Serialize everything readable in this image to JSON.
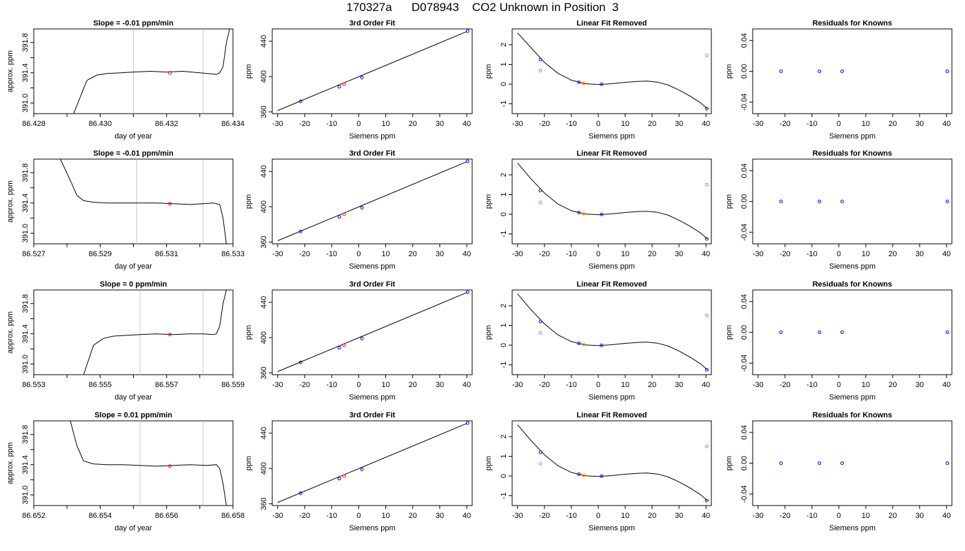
{
  "page": {
    "title": "170327a      D078943    CO2 Unknown in Position  3"
  },
  "colors": {
    "trace": "#000000",
    "known": "#0000ff",
    "unknown": "#ff0000",
    "knownAlt": "#cc66ff",
    "unknownFit": "#ff8800",
    "marker": "#c8c8c8"
  },
  "chart_data": [
    {
      "type": "line",
      "title": "Slope =  -0.01  ppm/min",
      "xlabel": "day of year",
      "ylabel": "approx. ppm",
      "xticks": [
        "86.428",
        "86.430",
        "86.432",
        "86.434"
      ],
      "yticks": [
        "391.0",
        "391.4",
        "391.8"
      ],
      "xlim": [
        86.428,
        86.434
      ],
      "ylim": [
        390.86,
        391.98
      ],
      "markers": [
        86.431,
        86.4331
      ],
      "point": [
        86.4321,
        391.4
      ],
      "x": [
        86.4292,
        86.4296,
        86.4299,
        86.4302,
        86.4306,
        86.431,
        86.4315,
        86.432,
        86.4325,
        86.433,
        86.4335,
        86.4336,
        86.4337,
        86.4338,
        86.4339
      ],
      "y": [
        390.86,
        391.3,
        391.37,
        391.39,
        391.4,
        391.41,
        391.42,
        391.41,
        391.42,
        391.4,
        391.38,
        391.4,
        391.48,
        391.8,
        391.98
      ]
    },
    {
      "type": "scatter",
      "title": "3rd Order Fit",
      "xlabel": "Siemens ppm",
      "ylabel": "ppm",
      "xticks": [
        "-30",
        "-20",
        "-10",
        "0",
        "10",
        "20",
        "30",
        "40"
      ],
      "yticks": [
        "360",
        "400",
        "440"
      ],
      "xlim": [
        -32,
        42
      ],
      "ylim": [
        358,
        454
      ],
      "fit_x": [
        -30,
        40
      ],
      "fit_y": [
        361.5,
        451
      ],
      "known": [
        [
          -21.5,
          372
        ],
        [
          -7.2,
          388.5
        ],
        [
          1.2,
          399
        ],
        [
          40.3,
          451.5
        ]
      ],
      "unknown": [
        [
          -5.4,
          391.5
        ]
      ]
    },
    {
      "type": "scatter",
      "title": "Linear Fit Removed",
      "xlabel": "Siemens ppm",
      "ylabel": "ppm",
      "xticks": [
        "-30",
        "-20",
        "-10",
        "0",
        "10",
        "20",
        "30",
        "40"
      ],
      "yticks": [
        "-1",
        "0",
        "1",
        "2"
      ],
      "xlim": [
        -32,
        42
      ],
      "ylim": [
        -1.5,
        2.8
      ],
      "curve": [
        [
          -30,
          2.6
        ],
        [
          -25,
          1.85
        ],
        [
          -20,
          1.1
        ],
        [
          -15,
          0.55
        ],
        [
          -10,
          0.2
        ],
        [
          -5,
          0.02
        ],
        [
          0,
          -0.02
        ],
        [
          5,
          0.02
        ],
        [
          10,
          0.09
        ],
        [
          15,
          0.14
        ],
        [
          18,
          0.15
        ],
        [
          22,
          0.1
        ],
        [
          26,
          -0.05
        ],
        [
          30,
          -0.3
        ],
        [
          34,
          -0.6
        ],
        [
          38,
          -0.95
        ],
        [
          40.5,
          -1.25
        ]
      ],
      "known": [
        [
          -21.5,
          1.25
        ],
        [
          -7.2,
          0.09
        ],
        [
          1.2,
          -0.01
        ],
        [
          40.3,
          -1.25
        ]
      ],
      "knownAlt": [
        [
          -21.5,
          0.68
        ],
        [
          40.3,
          1.45
        ]
      ],
      "unknown": [
        [
          -5.4,
          0.04
        ]
      ]
    },
    {
      "type": "scatter",
      "title": "Residuals for Knowns",
      "xlabel": "Siemens ppm",
      "ylabel": "ppm",
      "xticks": [
        "-30",
        "-20",
        "-10",
        "0",
        "10",
        "20",
        "30",
        "40"
      ],
      "yticks": [
        "-0.04",
        "0.00",
        "0.04"
      ],
      "xlim": [
        -32,
        42
      ],
      "ylim": [
        -0.055,
        0.055
      ],
      "known": [
        [
          -21.5,
          0
        ],
        [
          -7.2,
          0
        ],
        [
          1.2,
          0
        ],
        [
          40.3,
          0
        ]
      ]
    },
    {
      "type": "line",
      "title": "Slope =  -0.01  ppm/min",
      "xlabel": "day of year",
      "ylabel": "approx. ppm",
      "xticks": [
        "86.527",
        "86.529",
        "86.531",
        "86.533"
      ],
      "yticks": [
        "391.0",
        "391.4",
        "391.8"
      ],
      "xlim": [
        86.527,
        86.533
      ],
      "ylim": [
        390.86,
        391.98
      ],
      "markers": [
        86.5301,
        86.5321
      ],
      "point": [
        86.5311,
        391.39
      ],
      "x": [
        86.5278,
        86.5281,
        86.5283,
        86.5285,
        86.5288,
        86.5292,
        86.5297,
        86.5302,
        86.5307,
        86.5312,
        86.5317,
        86.5321,
        86.5324,
        86.5326,
        86.5327,
        86.5328
      ],
      "y": [
        391.98,
        391.7,
        391.5,
        391.43,
        391.41,
        391.4,
        391.4,
        391.4,
        391.4,
        391.39,
        391.38,
        391.39,
        391.4,
        391.38,
        391.2,
        390.86
      ]
    },
    {
      "type": "scatter",
      "title": "3rd Order Fit",
      "xlabel": "Siemens ppm",
      "ylabel": "ppm",
      "xticks": [
        "-30",
        "-20",
        "-10",
        "0",
        "10",
        "20",
        "30",
        "40"
      ],
      "yticks": [
        "360",
        "400",
        "440"
      ],
      "xlim": [
        -32,
        42
      ],
      "ylim": [
        358,
        454
      ],
      "fit_x": [
        -30,
        40
      ],
      "fit_y": [
        361.5,
        451
      ],
      "known": [
        [
          -21.5,
          372
        ],
        [
          -7.2,
          388.5
        ],
        [
          1.2,
          399
        ],
        [
          40.3,
          451.5
        ]
      ],
      "unknown": [
        [
          -5.4,
          391.5
        ]
      ]
    },
    {
      "type": "scatter",
      "title": "Linear Fit Removed",
      "xlabel": "Siemens ppm",
      "ylabel": "ppm",
      "xticks": [
        "-30",
        "-20",
        "-10",
        "0",
        "10",
        "20",
        "30",
        "40"
      ],
      "yticks": [
        "-1",
        "0",
        "1",
        "2"
      ],
      "xlim": [
        -32,
        42
      ],
      "ylim": [
        -1.5,
        2.8
      ],
      "curve": [
        [
          -30,
          2.6
        ],
        [
          -25,
          1.8
        ],
        [
          -20,
          1.08
        ],
        [
          -15,
          0.52
        ],
        [
          -10,
          0.18
        ],
        [
          -5,
          0.01
        ],
        [
          0,
          -0.02
        ],
        [
          5,
          0.02
        ],
        [
          10,
          0.09
        ],
        [
          15,
          0.14
        ],
        [
          18,
          0.15
        ],
        [
          22,
          0.1
        ],
        [
          26,
          -0.05
        ],
        [
          30,
          -0.3
        ],
        [
          34,
          -0.6
        ],
        [
          38,
          -0.95
        ],
        [
          40.5,
          -1.25
        ]
      ],
      "known": [
        [
          -21.5,
          1.2
        ],
        [
          -7.2,
          0.09
        ],
        [
          1.2,
          -0.01
        ],
        [
          40.3,
          -1.25
        ]
      ],
      "knownAlt": [
        [
          -21.5,
          0.6
        ],
        [
          40.3,
          1.5
        ]
      ],
      "unknown": [
        [
          -5.4,
          0.03
        ]
      ]
    },
    {
      "type": "scatter",
      "title": "Residuals for Knowns",
      "xlabel": "Siemens ppm",
      "ylabel": "ppm",
      "xticks": [
        "-30",
        "-20",
        "-10",
        "0",
        "10",
        "20",
        "30",
        "40"
      ],
      "yticks": [
        "-0.04",
        "0.00",
        "0.04"
      ],
      "xlim": [
        -32,
        42
      ],
      "ylim": [
        -0.055,
        0.055
      ],
      "known": [
        [
          -21.5,
          0
        ],
        [
          -7.2,
          0
        ],
        [
          1.2,
          0
        ],
        [
          40.3,
          0
        ]
      ]
    },
    {
      "type": "line",
      "title": "Slope =  0  ppm/min",
      "xlabel": "day of year",
      "ylabel": "approx. ppm",
      "xticks": [
        "86.553",
        "86.555",
        "86.557",
        "86.559"
      ],
      "yticks": [
        "391.0",
        "391.4",
        "391.8"
      ],
      "xlim": [
        86.553,
        86.559
      ],
      "ylim": [
        390.86,
        391.98
      ],
      "markers": [
        86.5562,
        86.5581
      ],
      "point": [
        86.5571,
        391.39
      ],
      "x": [
        86.5545,
        86.5548,
        86.5551,
        86.5554,
        86.5558,
        86.5562,
        86.5567,
        86.5572,
        86.5577,
        86.5581,
        86.5584,
        86.5585,
        86.5586,
        86.5587,
        86.5588
      ],
      "y": [
        390.86,
        391.25,
        391.34,
        391.37,
        391.38,
        391.39,
        391.4,
        391.39,
        391.4,
        391.4,
        391.39,
        391.4,
        391.5,
        391.8,
        391.98
      ]
    },
    {
      "type": "scatter",
      "title": "3rd Order Fit",
      "xlabel": "Siemens ppm",
      "ylabel": "ppm",
      "xticks": [
        "-30",
        "-20",
        "-10",
        "0",
        "10",
        "20",
        "30",
        "40"
      ],
      "yticks": [
        "360",
        "400",
        "440"
      ],
      "xlim": [
        -32,
        42
      ],
      "ylim": [
        358,
        454
      ],
      "fit_x": [
        -30,
        40
      ],
      "fit_y": [
        361.5,
        451
      ],
      "known": [
        [
          -21.5,
          372
        ],
        [
          -7.2,
          388.5
        ],
        [
          1.2,
          399
        ],
        [
          40.3,
          451.5
        ]
      ],
      "unknown": [
        [
          -5.4,
          391.5
        ]
      ]
    },
    {
      "type": "scatter",
      "title": "Linear Fit Removed",
      "xlabel": "Siemens ppm",
      "ylabel": "ppm",
      "xticks": [
        "-30",
        "-20",
        "-10",
        "0",
        "10",
        "20",
        "30",
        "40"
      ],
      "yticks": [
        "-1",
        "0",
        "1",
        "2"
      ],
      "xlim": [
        -32,
        42
      ],
      "ylim": [
        -1.5,
        2.8
      ],
      "curve": [
        [
          -30,
          2.6
        ],
        [
          -25,
          1.8
        ],
        [
          -20,
          1.08
        ],
        [
          -15,
          0.52
        ],
        [
          -10,
          0.18
        ],
        [
          -5,
          0.01
        ],
        [
          0,
          -0.02
        ],
        [
          5,
          0.02
        ],
        [
          10,
          0.09
        ],
        [
          15,
          0.14
        ],
        [
          18,
          0.15
        ],
        [
          22,
          0.1
        ],
        [
          26,
          -0.05
        ],
        [
          30,
          -0.3
        ],
        [
          34,
          -0.6
        ],
        [
          38,
          -0.95
        ],
        [
          40.5,
          -1.25
        ]
      ],
      "known": [
        [
          -21.5,
          1.2
        ],
        [
          -7.2,
          0.09
        ],
        [
          1.2,
          -0.01
        ],
        [
          40.3,
          -1.25
        ]
      ],
      "knownAlt": [
        [
          -21.5,
          0.62
        ],
        [
          40.3,
          1.5
        ]
      ],
      "unknown": [
        [
          -5.4,
          0.04
        ]
      ]
    },
    {
      "type": "scatter",
      "title": "Residuals for Knowns",
      "xlabel": "Siemens ppm",
      "ylabel": "ppm",
      "xticks": [
        "-30",
        "-20",
        "-10",
        "0",
        "10",
        "20",
        "30",
        "40"
      ],
      "yticks": [
        "-0.04",
        "0.00",
        "0.04"
      ],
      "xlim": [
        -32,
        42
      ],
      "ylim": [
        -0.055,
        0.055
      ],
      "known": [
        [
          -21.5,
          0
        ],
        [
          -7.2,
          0
        ],
        [
          1.2,
          0
        ],
        [
          40.3,
          0
        ]
      ]
    },
    {
      "type": "line",
      "title": "Slope =  0.01  ppm/min",
      "xlabel": "day of year",
      "ylabel": "approx. ppm",
      "xticks": [
        "86.652",
        "86.654",
        "86.656",
        "86.658"
      ],
      "yticks": [
        "391.0",
        "391.4",
        "391.8"
      ],
      "xlim": [
        86.652,
        86.658
      ],
      "ylim": [
        390.86,
        391.98
      ],
      "markers": [
        86.6552,
        86.6571
      ],
      "point": [
        86.6561,
        391.38
      ],
      "x": [
        86.6531,
        86.6533,
        86.6535,
        86.6538,
        86.6542,
        86.6547,
        86.6552,
        86.6557,
        86.6562,
        86.6567,
        86.6572,
        86.6575,
        86.6576,
        86.6577,
        86.6578
      ],
      "y": [
        391.98,
        391.65,
        391.45,
        391.41,
        391.4,
        391.4,
        391.39,
        391.38,
        391.39,
        391.4,
        391.39,
        391.4,
        391.35,
        391.15,
        390.86
      ]
    },
    {
      "type": "scatter",
      "title": "3rd Order Fit",
      "xlabel": "Siemens ppm",
      "ylabel": "ppm",
      "xticks": [
        "-30",
        "-20",
        "-10",
        "0",
        "10",
        "20",
        "30",
        "40"
      ],
      "yticks": [
        "360",
        "400",
        "440"
      ],
      "xlim": [
        -32,
        42
      ],
      "ylim": [
        358,
        454
      ],
      "fit_x": [
        -30,
        40
      ],
      "fit_y": [
        361.5,
        451
      ],
      "known": [
        [
          -21.5,
          372
        ],
        [
          -7.2,
          388.5
        ],
        [
          1.2,
          399
        ],
        [
          40.3,
          451.5
        ]
      ],
      "unknown": [
        [
          -5.4,
          391.5
        ]
      ]
    },
    {
      "type": "scatter",
      "title": "Linear Fit Removed",
      "xlabel": "Siemens ppm",
      "ylabel": "ppm",
      "xticks": [
        "-30",
        "-20",
        "-10",
        "0",
        "10",
        "20",
        "30",
        "40"
      ],
      "yticks": [
        "-1",
        "0",
        "1",
        "2"
      ],
      "xlim": [
        -32,
        42
      ],
      "ylim": [
        -1.5,
        2.8
      ],
      "curve": [
        [
          -30,
          2.6
        ],
        [
          -25,
          1.8
        ],
        [
          -20,
          1.08
        ],
        [
          -15,
          0.52
        ],
        [
          -10,
          0.18
        ],
        [
          -5,
          0.01
        ],
        [
          0,
          -0.02
        ],
        [
          5,
          0.02
        ],
        [
          10,
          0.09
        ],
        [
          15,
          0.14
        ],
        [
          18,
          0.15
        ],
        [
          22,
          0.1
        ],
        [
          26,
          -0.05
        ],
        [
          30,
          -0.3
        ],
        [
          34,
          -0.6
        ],
        [
          38,
          -0.95
        ],
        [
          40.5,
          -1.25
        ]
      ],
      "known": [
        [
          -21.5,
          1.2
        ],
        [
          -7.2,
          0.09
        ],
        [
          1.2,
          -0.01
        ],
        [
          40.3,
          -1.25
        ]
      ],
      "knownAlt": [
        [
          -21.5,
          0.62
        ],
        [
          40.3,
          1.5
        ]
      ],
      "unknown": [
        [
          -5.4,
          0.04
        ]
      ]
    },
    {
      "type": "scatter",
      "title": "Residuals for Knowns",
      "xlabel": "Siemens ppm",
      "ylabel": "ppm",
      "xticks": [
        "-30",
        "-20",
        "-10",
        "0",
        "10",
        "20",
        "30",
        "40"
      ],
      "yticks": [
        "-0.04",
        "0.00",
        "0.04"
      ],
      "xlim": [
        -32,
        42
      ],
      "ylim": [
        -0.055,
        0.055
      ],
      "known": [
        [
          -21.5,
          0
        ],
        [
          -7.2,
          0
        ],
        [
          1.2,
          0
        ],
        [
          40.3,
          0
        ]
      ]
    }
  ]
}
